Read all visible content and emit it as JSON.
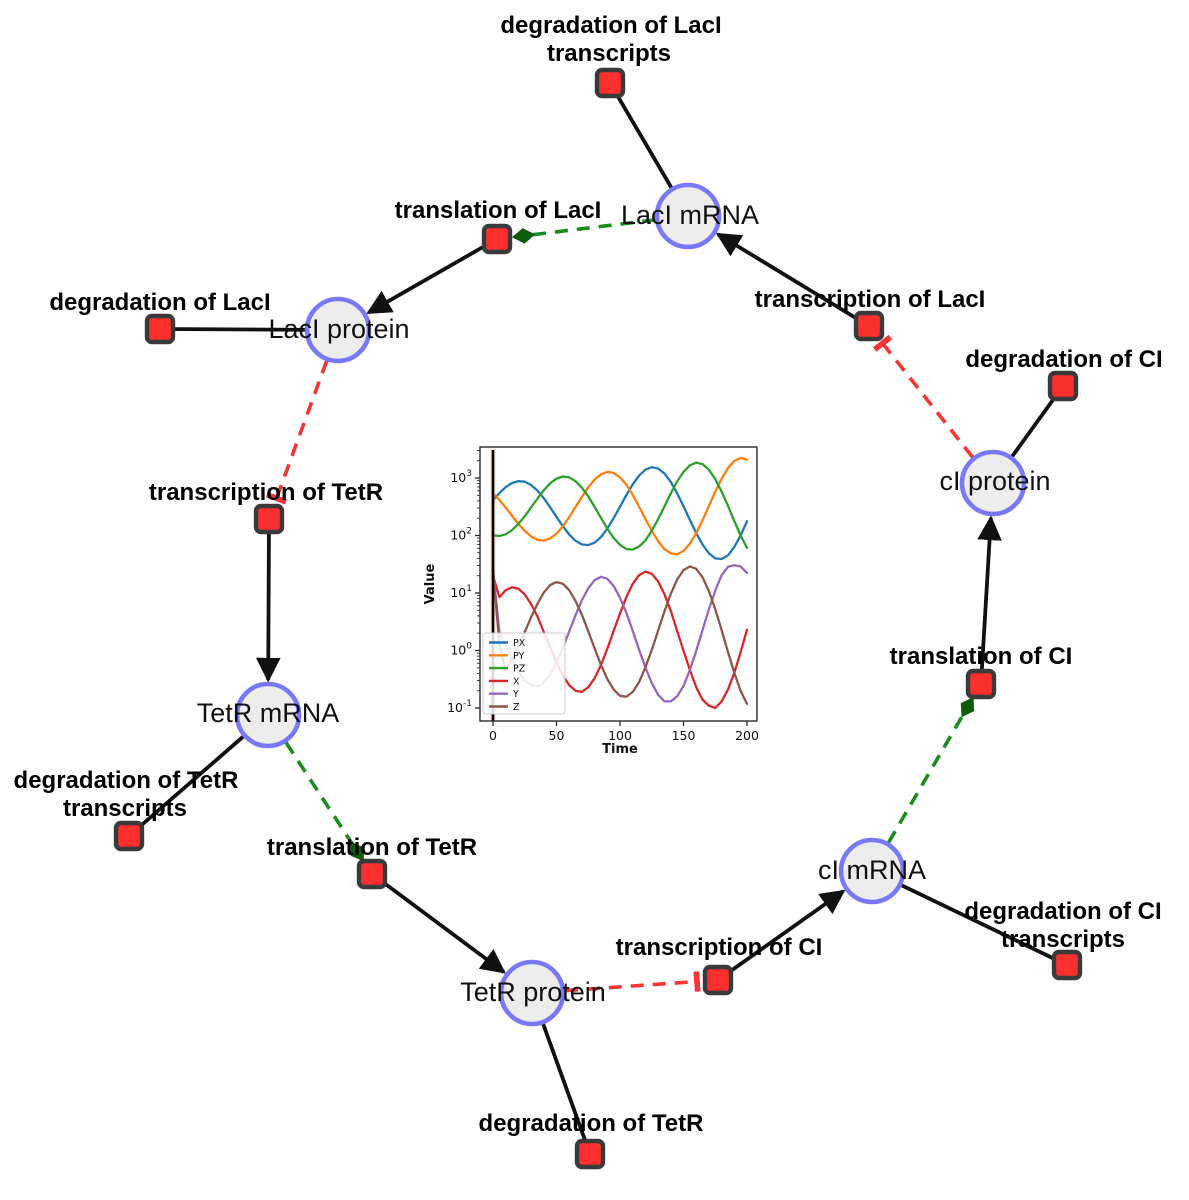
{
  "diagram": {
    "title": "repressilator reaction network",
    "species_nodes": [
      {
        "id": "laci-mrna",
        "label": "LacI mRNA"
      },
      {
        "id": "laci-protein",
        "label": "LacI protein"
      },
      {
        "id": "tetr-mrna",
        "label": "TetR mRNA"
      },
      {
        "id": "tetr-protein",
        "label": "TetR protein"
      },
      {
        "id": "ci-mrna",
        "label": "cI mRNA"
      },
      {
        "id": "ci-protein",
        "label": "cI protein"
      }
    ],
    "reaction_nodes": [
      {
        "id": "degradation-laci-transcripts",
        "label_lines": [
          "degradation of LacI",
          "transcripts"
        ]
      },
      {
        "id": "translation-laci",
        "label_lines": [
          "translation of LacI"
        ]
      },
      {
        "id": "transcription-laci",
        "label_lines": [
          "transcription of LacI"
        ]
      },
      {
        "id": "degradation-laci",
        "label_lines": [
          "degradation of LacI"
        ]
      },
      {
        "id": "transcription-tetr",
        "label_lines": [
          "transcription of TetR"
        ]
      },
      {
        "id": "degradation-ci",
        "label_lines": [
          "degradation of CI"
        ]
      },
      {
        "id": "degradation-tetr-transcripts",
        "label_lines": [
          "degradation of TetR",
          "transcripts"
        ]
      },
      {
        "id": "translation-tetr",
        "label_lines": [
          "translation of TetR"
        ]
      },
      {
        "id": "degradation-tetr",
        "label_lines": [
          "degradation of TetR"
        ]
      },
      {
        "id": "transcription-ci",
        "label_lines": [
          "transcription of CI"
        ]
      },
      {
        "id": "degradation-ci-transcripts",
        "label_lines": [
          "degradation of CI",
          "transcripts"
        ]
      },
      {
        "id": "translation-ci",
        "label_lines": [
          "translation of CI"
        ]
      }
    ],
    "edge_types": {
      "production": {
        "color": "#111111",
        "style": "solid",
        "head": "arrow"
      },
      "modifier": {
        "color": "#1a8c1a",
        "style": "dashed",
        "head": "diamond"
      },
      "inhibition": {
        "color": "#f83535",
        "style": "dashed",
        "head": "tee"
      },
      "consumption": {
        "color": "#111111",
        "style": "solid",
        "head": "none"
      }
    },
    "colors": {
      "species_fill": "#ededed",
      "species_border": "#7878fa",
      "reaction_fill": "#fc2f2f",
      "reaction_border": "#3a3a3a"
    }
  },
  "chart_data": {
    "type": "line",
    "title": "",
    "xlabel": "Time",
    "ylabel": "Value",
    "yscale": "log",
    "grid": false,
    "legend_position": "lower left",
    "xlim": [
      -10,
      208
    ],
    "ylim_log10": [
      -1.23,
      3.54
    ],
    "xticks": [
      0,
      50,
      100,
      150,
      200
    ],
    "ytick_exponents": [
      -1,
      0,
      1,
      2,
      3
    ],
    "annotations": [
      {
        "type": "vline",
        "x": 0,
        "color": "#000000"
      }
    ],
    "x": [
      0,
      5,
      10,
      15,
      20,
      25,
      30,
      35,
      40,
      45,
      50,
      55,
      60,
      65,
      70,
      75,
      80,
      85,
      90,
      95,
      100,
      105,
      110,
      115,
      120,
      125,
      130,
      135,
      140,
      145,
      150,
      155,
      160,
      165,
      170,
      175,
      180,
      185,
      190,
      195,
      200
    ],
    "series": [
      {
        "name": "PX",
        "color": "#1f77b4",
        "values": [
          412,
          547,
          693,
          818,
          883,
          861,
          757,
          604,
          445,
          310,
          211,
          145,
          104,
          81,
          70,
          68,
          75,
          94,
          132,
          200,
          317,
          504,
          773,
          1097,
          1392,
          1540,
          1465,
          1198,
          854,
          545,
          323,
          186,
          110,
          70,
          49,
          40,
          39,
          45,
          63,
          100,
          177
        ]
      },
      {
        "name": "PY",
        "color": "#ff7f0e",
        "values": [
          538,
          415,
          306,
          220,
          159,
          120,
          96,
          84,
          82,
          89,
          108,
          145,
          209,
          313,
          471,
          689,
          941,
          1166,
          1279,
          1227,
          1028,
          761,
          509,
          319,
          194,
          121,
          80,
          58,
          49,
          47,
          54,
          72,
          110,
          184,
          326,
          577,
          975,
          1490,
          1984,
          2231,
          2087
        ]
      },
      {
        "name": "PZ",
        "color": "#2ca02c",
        "values": [
          101,
          98,
          105,
          124,
          159,
          217,
          308,
          440,
          613,
          808,
          977,
          1063,
          1028,
          882,
          678,
          476,
          314,
          202,
          132,
          91,
          69,
          58,
          57,
          64,
          82,
          121,
          192,
          321,
          540,
          868,
          1279,
          1662,
          1854,
          1748,
          1396,
          958,
          583,
          328,
          179,
          100,
          61
        ]
      },
      {
        "name": "X",
        "color": "#d62728",
        "values": [
          20,
          8.5,
          11.2,
          12.6,
          11.9,
          9.4,
          6.4,
          3.9,
          2.1,
          1.14,
          0.62,
          0.37,
          0.25,
          0.2,
          0.19,
          0.23,
          0.33,
          0.56,
          1.07,
          2.18,
          4.4,
          8.5,
          14.4,
          20.4,
          23.6,
          21.6,
          15.9,
          9.5,
          4.9,
          2.2,
          0.99,
          0.46,
          0.23,
          0.14,
          0.11,
          0.1,
          0.13,
          0.21,
          0.41,
          0.93,
          2.3
        ]
      },
      {
        "name": "Y",
        "color": "#9467bd",
        "values": [
          25,
          2.1,
          1.19,
          0.69,
          0.43,
          0.3,
          0.25,
          0.24,
          0.28,
          0.38,
          0.62,
          1.12,
          2.14,
          4.1,
          7.5,
          12.1,
          16.7,
          19.1,
          17.7,
          13.3,
          8.3,
          4.5,
          2.2,
          1.04,
          0.51,
          0.27,
          0.17,
          0.13,
          0.13,
          0.16,
          0.24,
          0.46,
          0.98,
          2.25,
          5.2,
          11,
          20.3,
          28.5,
          30.5,
          29,
          22.4
        ]
      },
      {
        "name": "Z",
        "color": "#8c564b",
        "values": [
          25,
          1.3,
          0.45,
          0.69,
          1.18,
          2.11,
          3.8,
          6.5,
          10.2,
          13.7,
          15.5,
          14.5,
          11.2,
          7.3,
          4.2,
          2.16,
          1.09,
          0.56,
          0.32,
          0.21,
          0.163,
          0.157,
          0.19,
          0.28,
          0.51,
          1.02,
          2.21,
          4.8,
          9.7,
          17.1,
          25,
          29,
          26.4,
          18.8,
          10.8,
          5.2,
          2.26,
          0.94,
          0.41,
          0.2,
          0.118
        ]
      }
    ]
  }
}
